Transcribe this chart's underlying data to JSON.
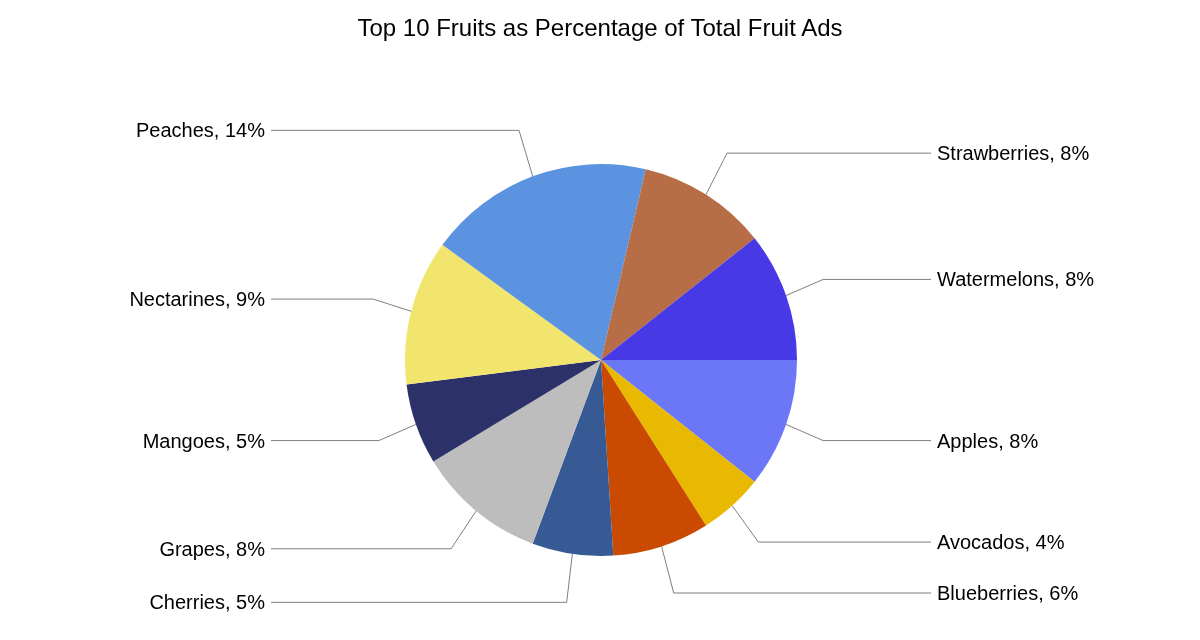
{
  "chart_data": {
    "type": "pie",
    "title": "Top 10 Fruits as Percentage of Total Fruit Ads",
    "categories": [
      "Apples",
      "Avocados",
      "Blueberries",
      "Cherries",
      "Grapes",
      "Mangoes",
      "Nectarines",
      "Peaches",
      "Strawberries",
      "Watermelons"
    ],
    "values": [
      8,
      4,
      6,
      5,
      8,
      5,
      9,
      14,
      8,
      8
    ],
    "value_labels": [
      "8%",
      "4%",
      "6%",
      "5%",
      "8%",
      "5%",
      "9%",
      "14%",
      "8%",
      "8%"
    ],
    "colors": [
      "#6b77f7",
      "#e9b800",
      "#c94a00",
      "#375a94",
      "#bdbdbd",
      "#2c3169",
      "#f2e56e",
      "#5b93e0",
      "#b76d45",
      "#4839e6"
    ],
    "legend": false
  }
}
